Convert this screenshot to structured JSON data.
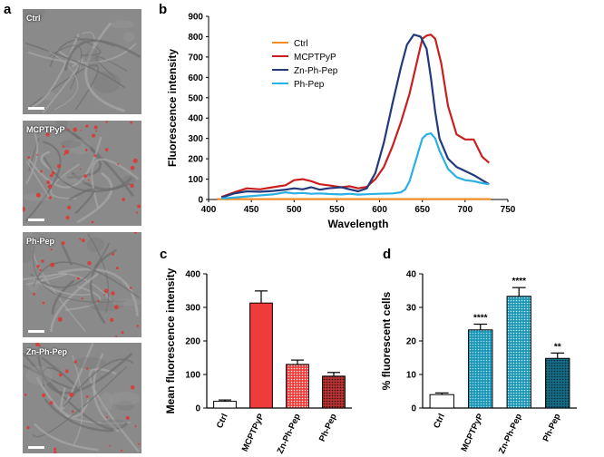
{
  "panels": {
    "a": "a",
    "b": "b",
    "c": "c",
    "d": "d"
  },
  "micrographs": [
    {
      "label": "Ctrl",
      "red_dots": 0
    },
    {
      "label": "MCPTPyP",
      "red_dots": 40
    },
    {
      "label": "Ph-Pep",
      "red_dots": 28
    },
    {
      "label": "Zn-Ph-Pep",
      "red_dots": 22
    }
  ],
  "chart_data": [
    {
      "type": "line",
      "title": "",
      "xlabel": "Wavelength",
      "ylabel": "Fluorescence intensity",
      "xlim": [
        400,
        750
      ],
      "ylim": [
        0,
        900
      ],
      "xticks": [
        400,
        450,
        500,
        550,
        600,
        650,
        700,
        750
      ],
      "yticks": [
        0,
        100,
        200,
        300,
        400,
        500,
        600,
        700,
        800,
        900
      ],
      "legend_position": "upper-left",
      "series": [
        {
          "name": "Ctrl",
          "color": "#f28c28",
          "x": [
            410,
            730
          ],
          "y": [
            2,
            2
          ]
        },
        {
          "name": "MCPTPyP",
          "color": "#c8201e",
          "x": [
            415,
            430,
            445,
            460,
            475,
            490,
            500,
            510,
            520,
            530,
            540,
            555,
            565,
            575,
            585,
            595,
            605,
            615,
            625,
            635,
            645,
            650,
            655,
            660,
            665,
            672,
            680,
            690,
            700,
            710,
            720,
            728
          ],
          "y": [
            12,
            35,
            55,
            50,
            60,
            70,
            95,
            100,
            90,
            75,
            70,
            60,
            65,
            55,
            62,
            100,
            160,
            260,
            380,
            520,
            700,
            790,
            805,
            810,
            790,
            670,
            460,
            320,
            295,
            295,
            210,
            180
          ]
        },
        {
          "name": "Zn-Ph-Pep",
          "color": "#22397a",
          "x": [
            415,
            430,
            445,
            460,
            475,
            490,
            500,
            510,
            520,
            530,
            540,
            555,
            565,
            575,
            585,
            595,
            605,
            615,
            625,
            632,
            640,
            648,
            655,
            660,
            665,
            670,
            680,
            690,
            700,
            710,
            720,
            728
          ],
          "y": [
            10,
            30,
            40,
            38,
            42,
            48,
            55,
            50,
            60,
            48,
            55,
            60,
            50,
            40,
            55,
            130,
            280,
            470,
            650,
            760,
            810,
            800,
            740,
            600,
            430,
            300,
            200,
            160,
            140,
            120,
            95,
            75
          ]
        },
        {
          "name": "Ph-Pep",
          "color": "#2bb0e3",
          "x": [
            415,
            430,
            445,
            460,
            475,
            490,
            500,
            510,
            520,
            530,
            540,
            555,
            565,
            575,
            585,
            600,
            615,
            625,
            630,
            635,
            640,
            645,
            650,
            655,
            660,
            665,
            670,
            680,
            690,
            700,
            710,
            720,
            728
          ],
          "y": [
            5,
            10,
            15,
            20,
            25,
            35,
            30,
            32,
            28,
            30,
            27,
            25,
            28,
            24,
            26,
            28,
            30,
            35,
            50,
            90,
            160,
            230,
            300,
            320,
            325,
            300,
            240,
            150,
            110,
            95,
            90,
            80,
            75
          ]
        }
      ]
    },
    {
      "type": "bar",
      "xlabel": "",
      "ylabel": "Mean fluorescence intensity",
      "ylim": [
        0,
        400
      ],
      "yticks": [
        0,
        100,
        200,
        300,
        400
      ],
      "categories": [
        "Ctrl",
        "MCPTPyP",
        "Zn-Ph-Pep",
        "Ph-Pep"
      ],
      "values": [
        20,
        313,
        130,
        95
      ],
      "errors": [
        4,
        36,
        13,
        11
      ],
      "colors": [
        "#ffffff",
        "#ef3b3a",
        "#ef3b3a",
        "#b83232"
      ]
    },
    {
      "type": "bar",
      "xlabel": "",
      "ylabel": "% fluorescent cells",
      "ylim": [
        0,
        40
      ],
      "yticks": [
        0,
        10,
        20,
        30,
        40
      ],
      "categories": [
        "Ctrl",
        "MCPTPyP",
        "Zn-Ph-Pep",
        "Ph-Pep"
      ],
      "values": [
        4,
        23.3,
        33.3,
        14.8
      ],
      "errors": [
        0.5,
        1.7,
        2.6,
        1.6
      ],
      "significance": [
        "",
        "****",
        "****",
        "**"
      ],
      "colors": [
        "#ffffff",
        "#1b95b5",
        "#1b95b5",
        "#136c85"
      ]
    }
  ]
}
